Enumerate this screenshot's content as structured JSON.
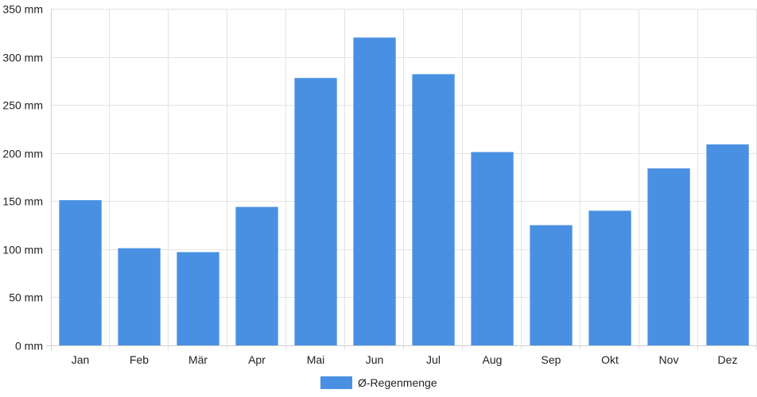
{
  "chart_data": {
    "type": "bar",
    "categories": [
      "Jan",
      "Feb",
      "Mär",
      "Apr",
      "Mai",
      "Jun",
      "Jul",
      "Aug",
      "Sep",
      "Okt",
      "Nov",
      "Dez"
    ],
    "series": [
      {
        "name": "Ø-Regenmenge",
        "values": [
          151,
          101,
          97,
          144,
          278,
          320,
          282,
          201,
          125,
          140,
          184,
          209
        ],
        "color": "#4a90e2"
      }
    ],
    "y_unit": "mm",
    "y_ticks": [
      0,
      50,
      100,
      150,
      200,
      250,
      300,
      350
    ],
    "ylim": [
      0,
      350
    ],
    "grid": true,
    "legend_position": "bottom"
  }
}
